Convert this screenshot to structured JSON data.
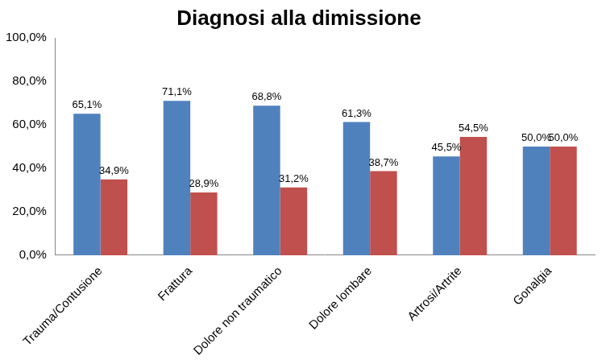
{
  "chart_data": {
    "type": "bar",
    "title": "Diagnosi alla dimissione",
    "categories": [
      "Trauma/Contusione",
      "Frattura",
      "Dolore non traumatico",
      "Dolore lombare",
      "Artrosi/Artrite",
      "Gonalgia"
    ],
    "series": [
      {
        "color": "#4F81BD",
        "values": [
          65.1,
          71.1,
          68.8,
          61.3,
          45.5,
          50.0
        ],
        "value_labels": [
          "65,1%",
          "71,1%",
          "68,8%",
          "61,3%",
          "45,5%",
          "50,0%"
        ]
      },
      {
        "color": "#C0504D",
        "values": [
          34.9,
          28.9,
          31.2,
          38.7,
          54.5,
          50.0
        ],
        "value_labels": [
          "34,9%",
          "28,9%",
          "31,2%",
          "38,7%",
          "54,5%",
          "50,0%"
        ]
      }
    ],
    "ylim": [
      0,
      100
    ],
    "yticks": [
      {
        "value": 0,
        "label": "0,0%"
      },
      {
        "value": 20,
        "label": "20,0%"
      },
      {
        "value": 40,
        "label": "40,0%"
      },
      {
        "value": 60,
        "label": "60,0%"
      },
      {
        "value": 80,
        "label": "80,0%"
      },
      {
        "value": 100,
        "label": "100,0%"
      }
    ],
    "grid": false,
    "data_labels": true
  }
}
